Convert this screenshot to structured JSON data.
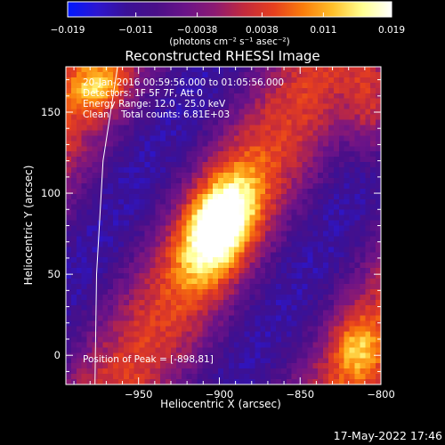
{
  "chart_data": {
    "type": "heatmap",
    "title": "Reconstructed RHESSI Image",
    "xlabel": "Heliocentric X (arcsec)",
    "ylabel": "Heliocentric Y (arcsec)",
    "xlim": [
      -995,
      -800
    ],
    "ylim": [
      -18,
      178
    ],
    "x_ticks": [
      -950,
      -900,
      -850,
      -800
    ],
    "x_tick_labels": [
      "−950",
      "−900",
      "−850",
      "−800"
    ],
    "y_ticks": [
      0,
      50,
      100,
      150
    ],
    "y_tick_labels": [
      "0",
      "50",
      "100",
      "150"
    ],
    "colorbar": {
      "min": -0.019,
      "max": 0.019,
      "ticks": [
        -0.019,
        -0.011,
        -0.0038,
        0.0038,
        0.011,
        0.019
      ],
      "tick_labels": [
        "−0.019",
        "−0.011",
        "−0.0038",
        "0.0038",
        "0.011",
        "0.019"
      ],
      "unit_label": "(photons cm⁻² s⁻¹ asec⁻²)"
    },
    "annotations": [
      "20-Jan-2016 00:59:56.000 to 01:05:56.000",
      "Detectors: 1F 5F 7F, Att 0",
      "Energy Range: 12.0 - 25.0 keV",
      "Clean    Total counts: 6.81E+03"
    ],
    "peak_label": "Position of Peak = [-898,81]",
    "peak_position": [
      -898,
      81
    ],
    "peak_value": 0.019,
    "sources": [
      {
        "x": -900,
        "y": 80,
        "amplitude": 0.024,
        "sigma_x": 14,
        "sigma_y": 24,
        "tilt_deg": 25
      },
      {
        "x": -975,
        "y": 165,
        "amplitude": 0.011,
        "sigma_x": 12,
        "sigma_y": 10,
        "tilt_deg": 0
      },
      {
        "x": -805,
        "y": 150,
        "amplitude": 0.011,
        "sigma_x": 10,
        "sigma_y": 22,
        "tilt_deg": 0
      },
      {
        "x": -815,
        "y": 5,
        "amplitude": 0.01,
        "sigma_x": 10,
        "sigma_y": 14,
        "tilt_deg": 0
      }
    ],
    "limb_curve": [
      [
        -977,
        -18
      ],
      [
        -976,
        50
      ],
      [
        -972,
        120
      ],
      [
        -963,
        178
      ]
    ],
    "footer_timestamp": "17-May-2022 17:46"
  },
  "colors": {
    "background": "#000000",
    "axes": "#ffffff",
    "limb": "#ffffff",
    "colormap": [
      "#0018ff",
      "#2c16d0",
      "#3a1196",
      "#4a0f88",
      "#6a1388",
      "#8c1a72",
      "#c32a3c",
      "#e63f1e",
      "#fa7d0b",
      "#ffc02a",
      "#ffff90",
      "#ffffff"
    ]
  }
}
